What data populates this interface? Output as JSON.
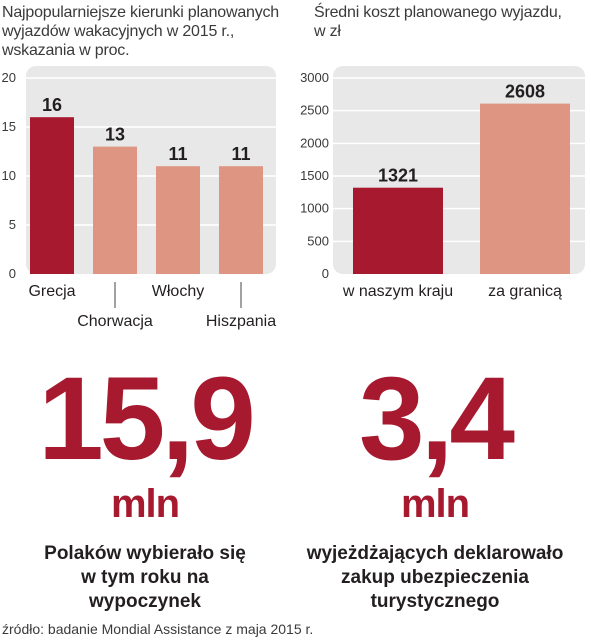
{
  "chart_data": [
    {
      "type": "bar",
      "title": "Najpopularniejsze kierunki planowanych wyjazdów wakacyjnych w 2015 r., wskazania w proc.",
      "title_lines": [
        "Najpopularniejsze kierunki planowanych",
        "wyjazdów wakacyjnych w 2015 r.,",
        "wskazania w proc."
      ],
      "categories": [
        "Grecja",
        "Chorwacja",
        "Włochy",
        "Hiszpania"
      ],
      "values": [
        16,
        13,
        11,
        11
      ],
      "ylim": [
        0,
        20
      ],
      "yticks": [
        0,
        5,
        10,
        15,
        20
      ],
      "grid": true,
      "colors": [
        "#a6192e",
        "#de9582",
        "#de9582",
        "#de9582"
      ]
    },
    {
      "type": "bar",
      "title": "Średni koszt planowanego wyjazdu, w zł",
      "title_lines": [
        "Średni koszt planowanego wyjazdu,",
        "w zł"
      ],
      "categories": [
        "w naszym kraju",
        "za granicą"
      ],
      "values": [
        1321,
        2608
      ],
      "ylim": [
        0,
        3000
      ],
      "yticks": [
        0,
        500,
        1000,
        1500,
        2000,
        2500,
        3000
      ],
      "grid": true,
      "colors": [
        "#a6192e",
        "#de9582"
      ]
    }
  ],
  "stats": [
    {
      "number": "15,9",
      "unit": "mln",
      "lines": [
        "Polaków wybierało się",
        "w tym roku na",
        "wypoczynek"
      ]
    },
    {
      "number": "3,4",
      "unit": "mln",
      "lines": [
        "wyjeżdżających deklarowało",
        "zakup ubezpieczenia",
        "turystycznego"
      ]
    }
  ],
  "source": "źródło: badanie Mondial Assistance z maja 2015 r.",
  "colors": {
    "accent": "#a6192e",
    "light_bar": "#de9582",
    "panel": "#e8e8e8",
    "grid": "#ffffff"
  }
}
